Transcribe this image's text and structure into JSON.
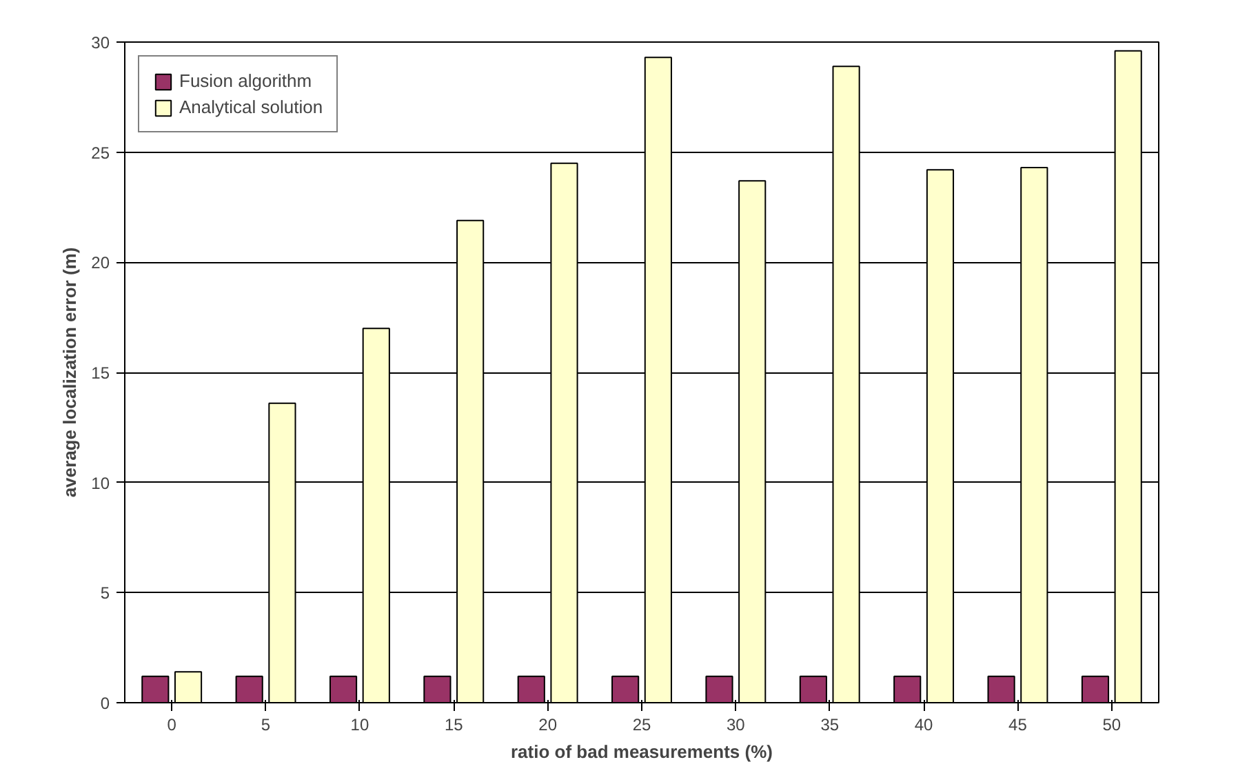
{
  "chart_data": {
    "type": "bar",
    "xlabel": "ratio of bad measurements (%)",
    "ylabel": "average localization error (m)",
    "categories": [
      "0",
      "5",
      "10",
      "15",
      "20",
      "25",
      "30",
      "35",
      "40",
      "45",
      "50"
    ],
    "series": [
      {
        "name": "Fusion algorithm",
        "color": "#993366",
        "values": [
          1.2,
          1.2,
          1.2,
          1.2,
          1.2,
          1.2,
          1.2,
          1.2,
          1.2,
          1.2,
          1.2
        ]
      },
      {
        "name": "Analytical solution",
        "color": "#ffffcc",
        "values": [
          1.4,
          13.6,
          17.0,
          21.9,
          24.5,
          29.3,
          23.7,
          28.9,
          24.2,
          24.3,
          29.6
        ]
      }
    ],
    "ylim": [
      0,
      30
    ],
    "yticks": [
      0,
      5,
      10,
      15,
      20,
      25,
      30
    ],
    "grid": "y",
    "legend": "top left"
  }
}
